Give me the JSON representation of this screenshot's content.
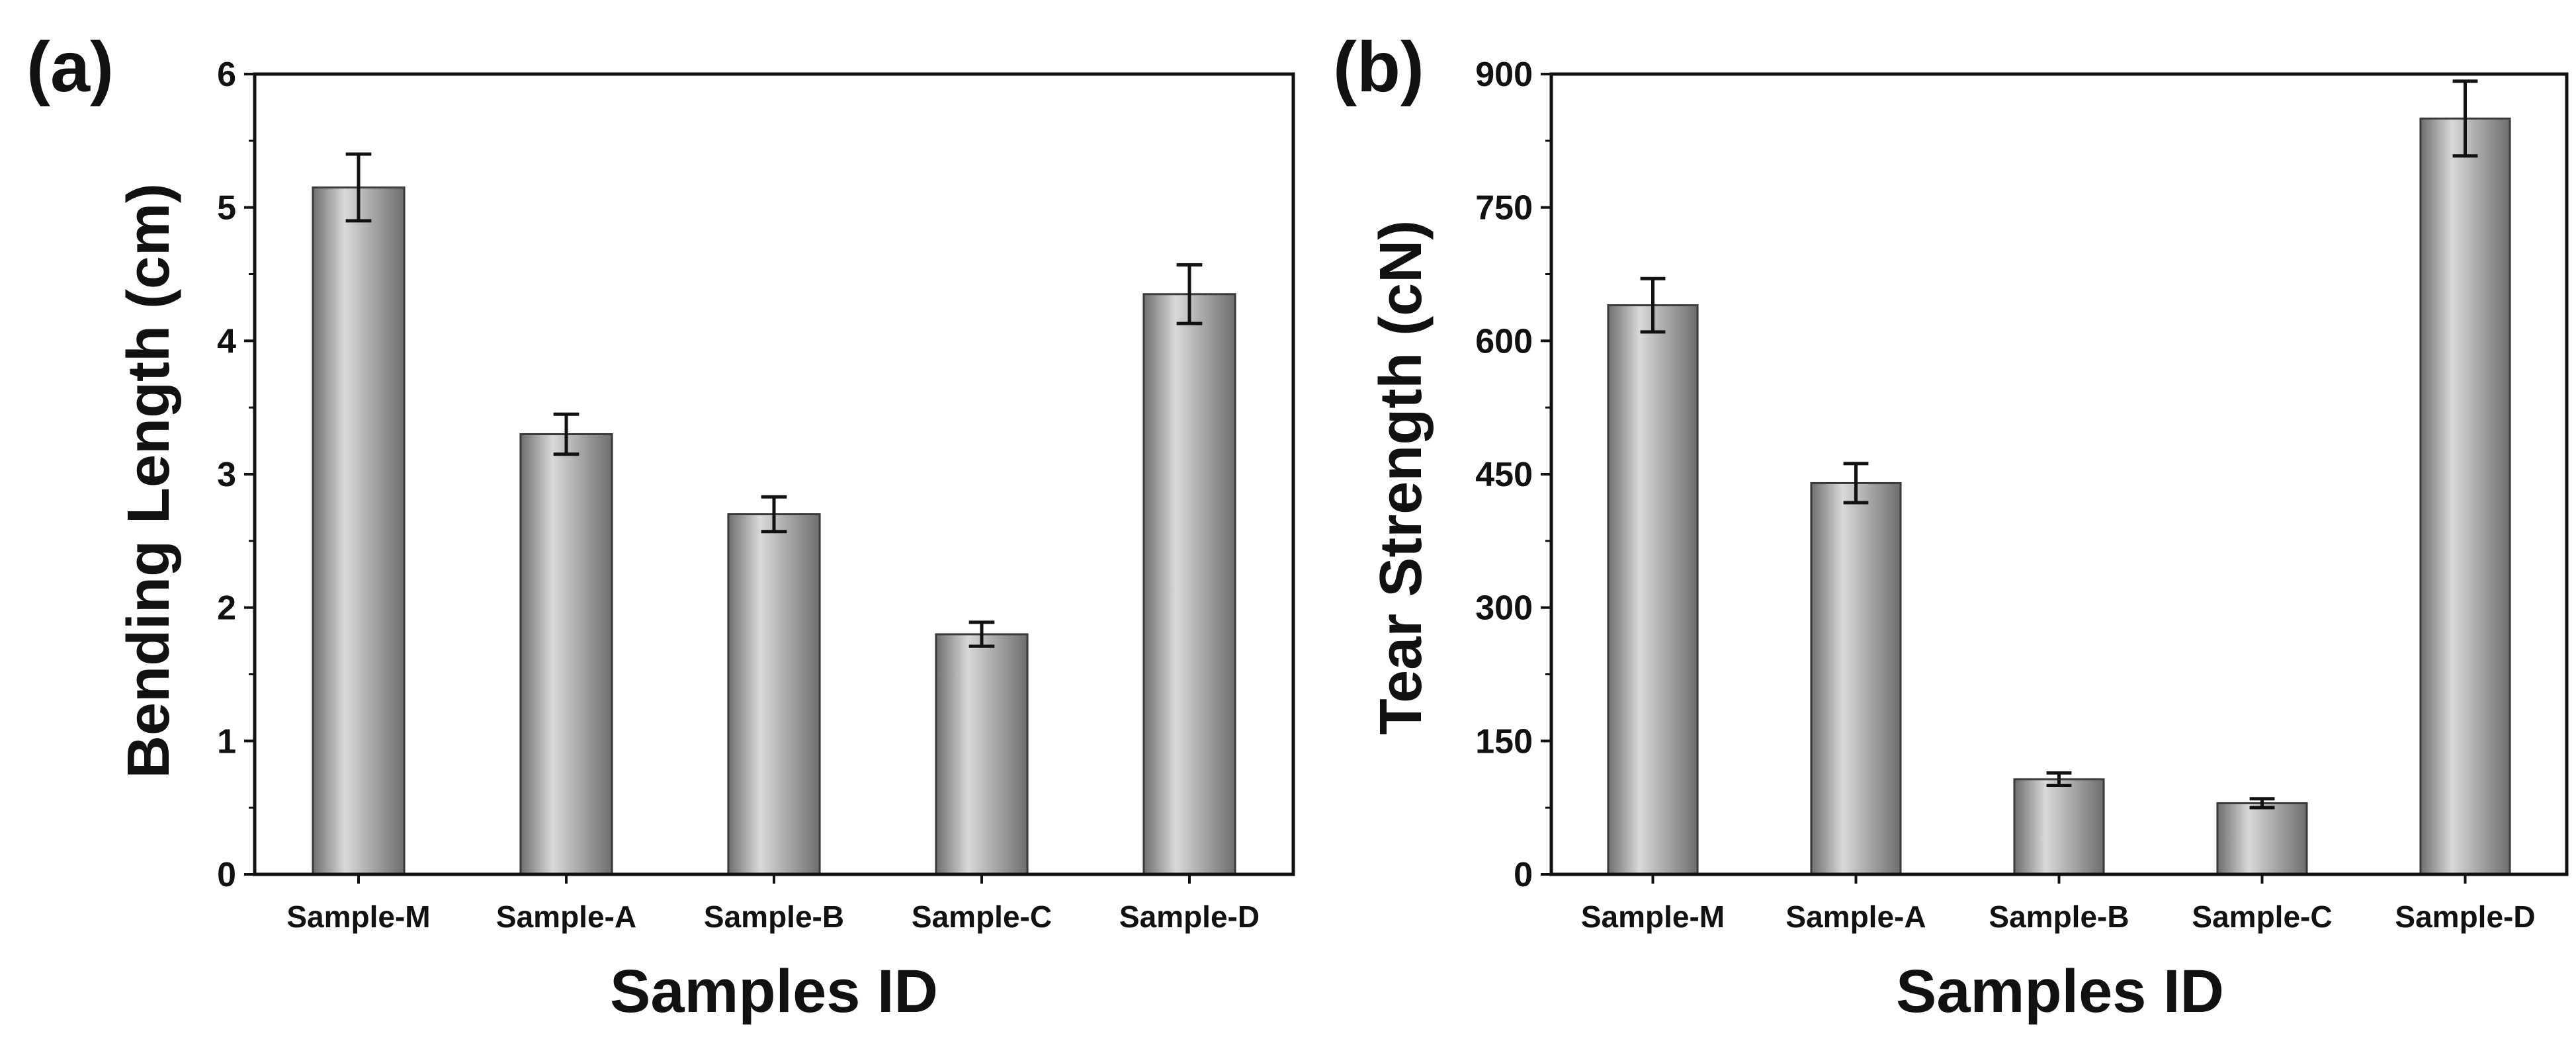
{
  "chart_data": [
    {
      "panel_label": "(a)",
      "type": "bar",
      "categories": [
        "Sample-M",
        "Sample-A",
        "Sample-B",
        "Sample-C",
        "Sample-D"
      ],
      "values": [
        5.15,
        3.3,
        2.7,
        1.8,
        4.35
      ],
      "errors": [
        0.25,
        0.15,
        0.13,
        0.09,
        0.22
      ],
      "xlabel": "Samples ID",
      "ylabel": "Bending Length (cm)",
      "ylim": [
        0,
        6
      ],
      "yticks": [
        0,
        1,
        2,
        3,
        4,
        5,
        6
      ],
      "grid": false,
      "colors": {
        "bar_light": "#d9d9d9",
        "bar_dark": "#6e6e6e",
        "edge": "#3a3a3a"
      }
    },
    {
      "panel_label": "(b)",
      "type": "bar",
      "categories": [
        "Sample-M",
        "Sample-A",
        "Sample-B",
        "Sample-C",
        "Sample-D"
      ],
      "values": [
        640,
        440,
        107,
        80,
        850
      ],
      "errors": [
        30,
        22,
        7,
        5,
        42
      ],
      "xlabel": "Samples ID",
      "ylabel": "Tear Strength (cN)",
      "ylim": [
        0,
        900
      ],
      "yticks": [
        0,
        150,
        300,
        450,
        600,
        750,
        900
      ],
      "grid": false,
      "colors": {
        "bar_light": "#d9d9d9",
        "bar_dark": "#6e6e6e",
        "edge": "#3a3a3a"
      }
    }
  ]
}
